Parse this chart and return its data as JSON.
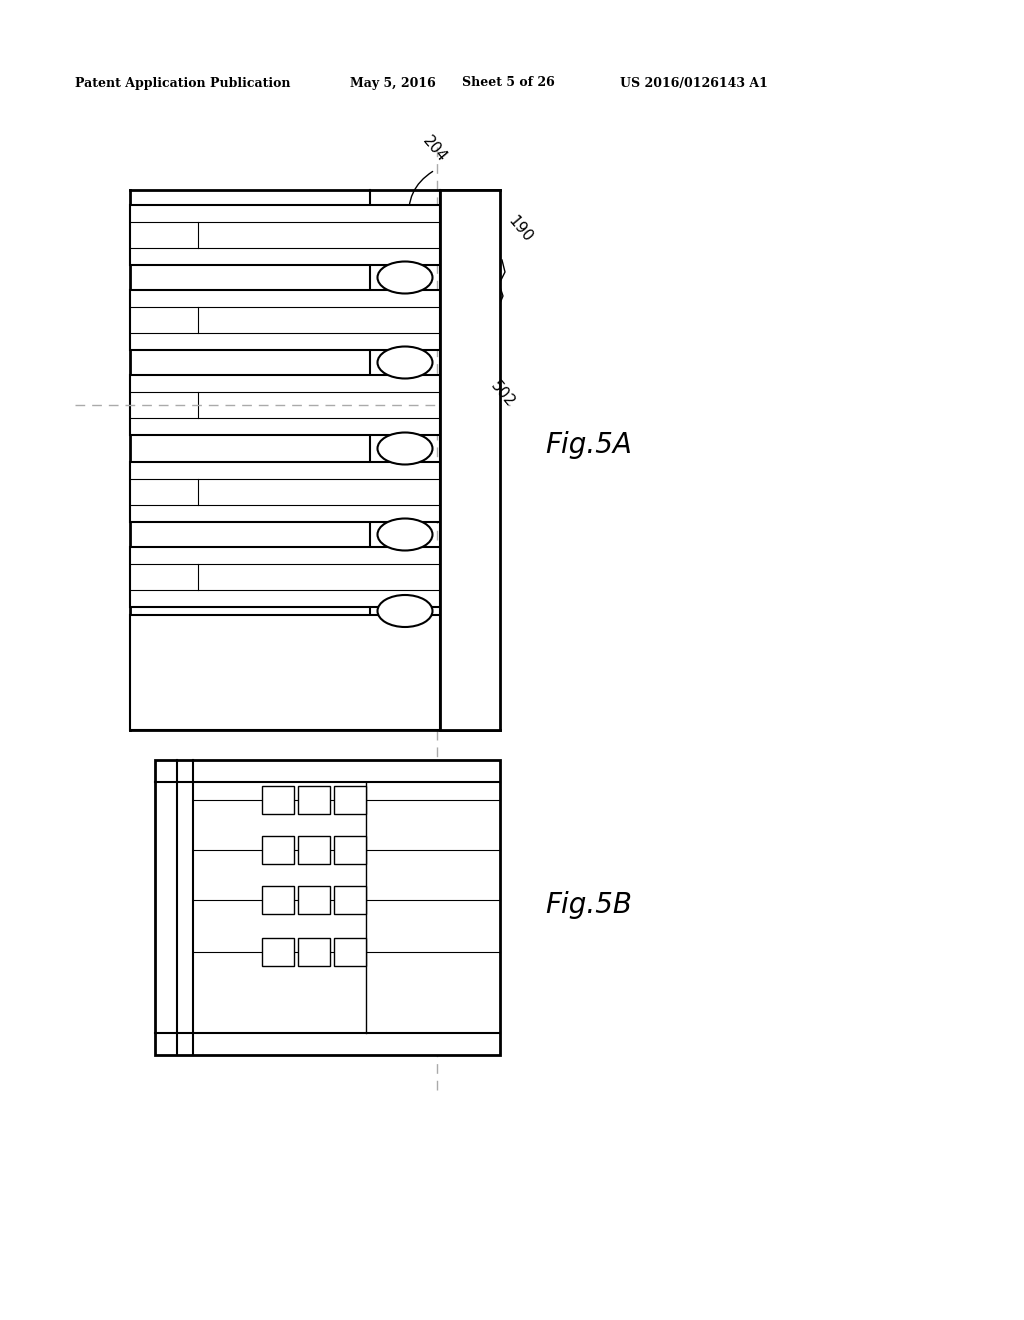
{
  "bg_color": "#ffffff",
  "line_color": "#000000",
  "header_text": "Patent Application Publication",
  "header_date": "May 5, 2016",
  "header_sheet": "Sheet 5 of 26",
  "header_patent": "US 2016/0126143 A1",
  "fig5A_label": "Fig.5A",
  "fig5B_label": "Fig.5B",
  "label_204": "204",
  "label_190": "190",
  "label_502": "502"
}
